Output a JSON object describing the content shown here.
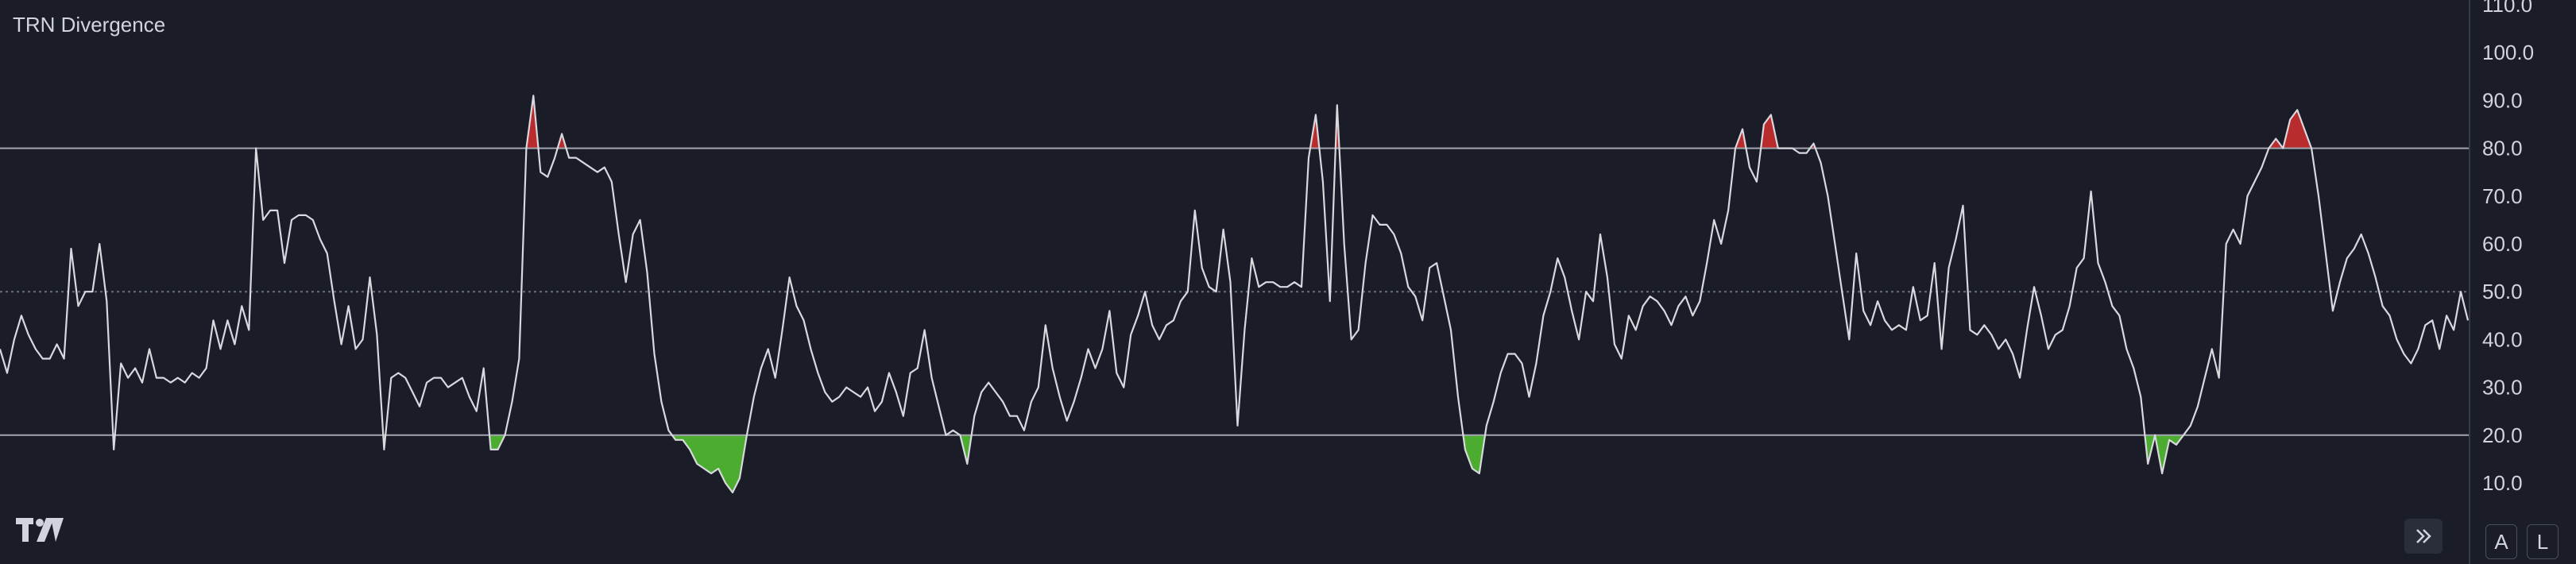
{
  "indicator": {
    "title": "TRN Divergence"
  },
  "controls": {
    "auto_label": "A",
    "log_label": "L",
    "scroll_icon": "double-chevron-right-icon",
    "logo_icon": "tradingview-logo-icon"
  },
  "colors": {
    "background": "#1a1c27",
    "line": "#d8d8de",
    "overbought_fill": "#c62e2e",
    "oversold_fill": "#4fb830",
    "level_line": "#a3a6b0",
    "midline": "#6b6e7a",
    "axis_text": "#d1d4dc"
  },
  "chart_data": {
    "type": "line",
    "title": "TRN Divergence",
    "ylim": [
      0,
      110
    ],
    "yticks": [
      "10.0",
      "20.0",
      "30.0",
      "40.0",
      "50.0",
      "60.0",
      "70.0",
      "80.0",
      "90.0",
      "100.0",
      "110.0"
    ],
    "levels": {
      "upper": 80,
      "middle": 50,
      "lower": 20
    },
    "grid": false,
    "series": [
      {
        "values": [
          38,
          33,
          40,
          45,
          41,
          38,
          36,
          36,
          39,
          36,
          59,
          47,
          50,
          50,
          60,
          48,
          17,
          35,
          32,
          34,
          31,
          38,
          32,
          32,
          31,
          32,
          31,
          33,
          32,
          34,
          44,
          38,
          44,
          39,
          47,
          42,
          80,
          65,
          67,
          67,
          56,
          65,
          66,
          66,
          65,
          61,
          58,
          48,
          39,
          47,
          38,
          40,
          53,
          41,
          17,
          32,
          33,
          32,
          29,
          26,
          31,
          32,
          32,
          30,
          31,
          32,
          28,
          25,
          34,
          17,
          17,
          20,
          27,
          36,
          80,
          91,
          75,
          74,
          78,
          83,
          78,
          78,
          77,
          76,
          75,
          76,
          73,
          62,
          52,
          62,
          65,
          54,
          37,
          27,
          21,
          19,
          19,
          17,
          14,
          13,
          12,
          13,
          10,
          8,
          11,
          20,
          28,
          34,
          38,
          32,
          42,
          53,
          47,
          44,
          38,
          33,
          29,
          27,
          28,
          30,
          29,
          28,
          30,
          25,
          27,
          33,
          29,
          24,
          33,
          34,
          42,
          32,
          26,
          20,
          21,
          20,
          14,
          24,
          29,
          31,
          29,
          27,
          24,
          24,
          21,
          27,
          30,
          43,
          34,
          28,
          23,
          27,
          32,
          38,
          34,
          38,
          46,
          33,
          30,
          41,
          45,
          50,
          43,
          40,
          43,
          44,
          48,
          50,
          67,
          55,
          51,
          50,
          63,
          52,
          22,
          42,
          57,
          51,
          52,
          52,
          51,
          51,
          52,
          51,
          78,
          87,
          73,
          48,
          89,
          60,
          40,
          42,
          56,
          66,
          64,
          64,
          62,
          58,
          51,
          49,
          44,
          55,
          56,
          49,
          42,
          28,
          17,
          13,
          12,
          22,
          27,
          33,
          37,
          37,
          35,
          28,
          35,
          45,
          50,
          57,
          53,
          46,
          40,
          50,
          48,
          62,
          53,
          39,
          36,
          45,
          42,
          47,
          49,
          48,
          46,
          43,
          47,
          49,
          45,
          48,
          56,
          65,
          60,
          67,
          80,
          84,
          76,
          73,
          85,
          87,
          80,
          80,
          80,
          79,
          79,
          81,
          77,
          70,
          60,
          50,
          40,
          58,
          46,
          43,
          48,
          44,
          42,
          43,
          42,
          51,
          44,
          45,
          56,
          38,
          55,
          61,
          68,
          42,
          41,
          43,
          41,
          38,
          40,
          37,
          32,
          42,
          51,
          45,
          38,
          41,
          42,
          47,
          55,
          57,
          71,
          56,
          52,
          47,
          45,
          38,
          34,
          28,
          14,
          20,
          12,
          19,
          18,
          20,
          22,
          26,
          32,
          38,
          32,
          60,
          63,
          60,
          70,
          73,
          76,
          80,
          82,
          80,
          86,
          88,
          84,
          80,
          70,
          58,
          46,
          52,
          57,
          59,
          62,
          58,
          53,
          47,
          45,
          40,
          37,
          35,
          38,
          43,
          44,
          38,
          45,
          42,
          50,
          44
        ]
      }
    ]
  }
}
